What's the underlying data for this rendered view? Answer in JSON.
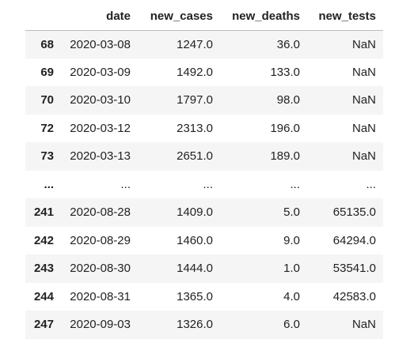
{
  "table": {
    "columns": [
      "",
      "date",
      "new_cases",
      "new_deaths",
      "new_tests"
    ],
    "rows": [
      [
        "68",
        "2020-03-08",
        "1247.0",
        "36.0",
        "NaN"
      ],
      [
        "69",
        "2020-03-09",
        "1492.0",
        "133.0",
        "NaN"
      ],
      [
        "70",
        "2020-03-10",
        "1797.0",
        "98.0",
        "NaN"
      ],
      [
        "72",
        "2020-03-12",
        "2313.0",
        "196.0",
        "NaN"
      ],
      [
        "73",
        "2020-03-13",
        "2651.0",
        "189.0",
        "NaN"
      ],
      [
        "...",
        "...",
        "...",
        "...",
        "..."
      ],
      [
        "241",
        "2020-08-28",
        "1409.0",
        "5.0",
        "65135.0"
      ],
      [
        "242",
        "2020-08-29",
        "1460.0",
        "9.0",
        "64294.0"
      ],
      [
        "243",
        "2020-08-30",
        "1444.0",
        "1.0",
        "53541.0"
      ],
      [
        "244",
        "2020-08-31",
        "1365.0",
        "4.0",
        "42583.0"
      ],
      [
        "247",
        "2020-09-03",
        "1326.0",
        "6.0",
        "NaN"
      ]
    ]
  }
}
